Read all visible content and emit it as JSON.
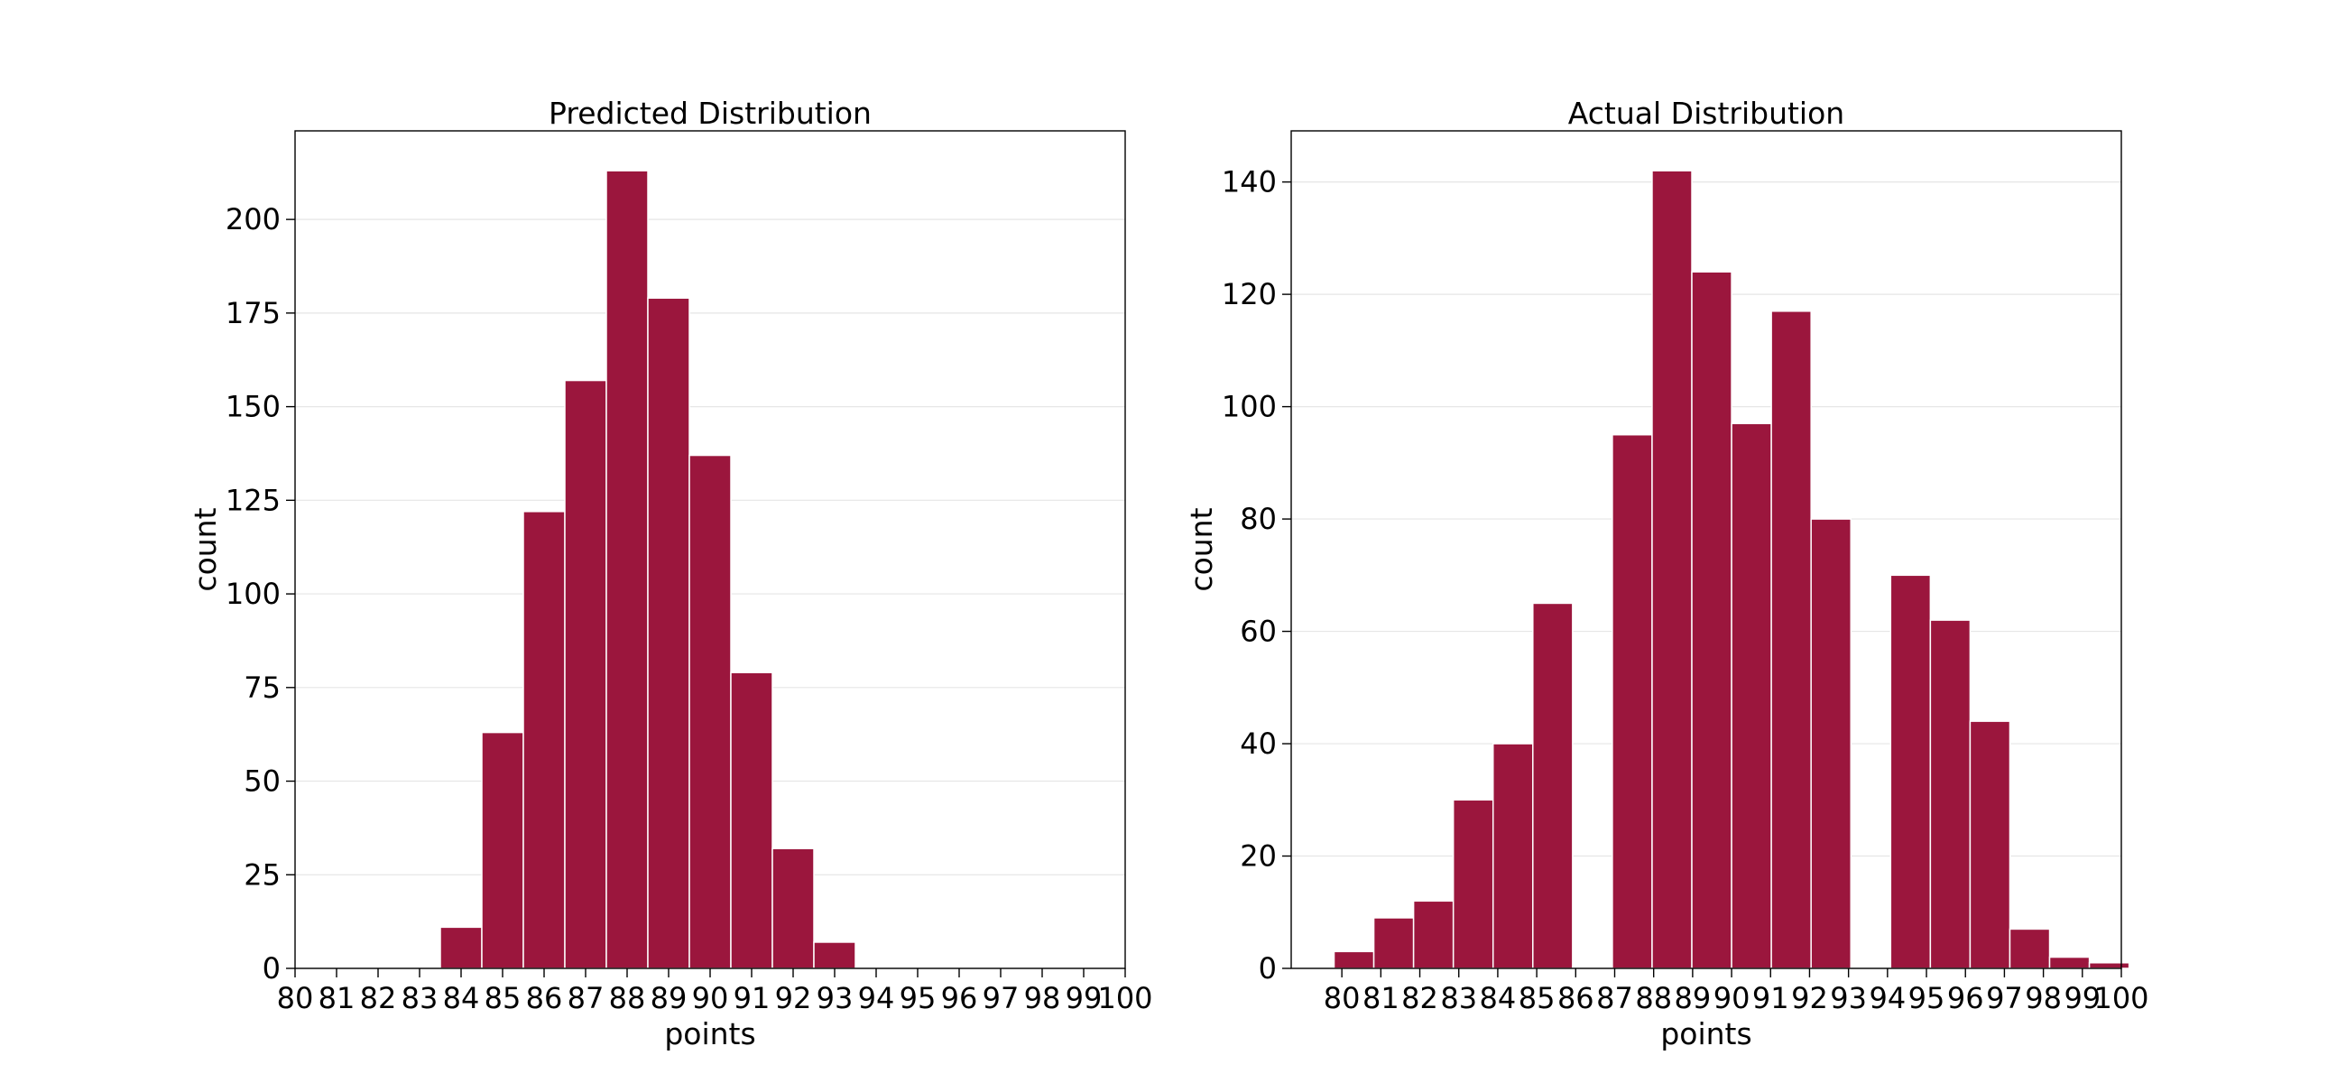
{
  "chart_data": [
    {
      "type": "bar",
      "title": "Predicted Distribution",
      "xlabel": "points",
      "ylabel": "count",
      "xlim": [
        80,
        100
      ],
      "ylim": [
        0,
        223.65
      ],
      "xticks": [
        "80",
        "81",
        "82",
        "83",
        "84",
        "85",
        "86",
        "87",
        "88",
        "89",
        "90",
        "91",
        "92",
        "93",
        "94",
        "95",
        "96",
        "97",
        "98",
        "99",
        "100"
      ],
      "yticks": [
        "0",
        "25",
        "50",
        "75",
        "100",
        "125",
        "150",
        "175",
        "200"
      ],
      "bin_width": 1.0,
      "bins_start": [
        83.5,
        84.5,
        85.5,
        86.5,
        87.5,
        88.5,
        89.5,
        90.5,
        91.5,
        92.5
      ],
      "values": [
        11,
        63,
        122,
        157,
        213,
        179,
        137,
        79,
        32,
        7
      ],
      "bar_color": "#9b163d",
      "grid": "horizontal"
    },
    {
      "type": "bar",
      "title": "Actual Distribution",
      "xlabel": "points",
      "ylabel": "count",
      "xlim": [
        78.7,
        100
      ],
      "ylim": [
        0,
        149.1
      ],
      "xticks": [
        "80",
        "81",
        "82",
        "83",
        "84",
        "85",
        "86",
        "87",
        "88",
        "89",
        "90",
        "91",
        "92",
        "93",
        "94",
        "95",
        "96",
        "97",
        "98",
        "99",
        "100"
      ],
      "yticks": [
        "0",
        "20",
        "40",
        "60",
        "80",
        "100",
        "120",
        "140"
      ],
      "bin_width": 1.02,
      "bins_start": [
        79.8,
        80.82,
        81.84,
        82.86,
        83.88,
        84.9,
        85.92,
        86.94,
        87.96,
        88.98,
        90.0,
        91.02,
        92.04,
        93.06,
        94.08,
        95.1,
        96.12,
        97.14,
        98.16,
        99.18
      ],
      "values": [
        3,
        9,
        12,
        30,
        40,
        65,
        0,
        95,
        142,
        124,
        97,
        117,
        80,
        0,
        70,
        62,
        44,
        7,
        2,
        1
      ],
      "bar_color": "#9b163d",
      "grid": "horizontal"
    }
  ]
}
